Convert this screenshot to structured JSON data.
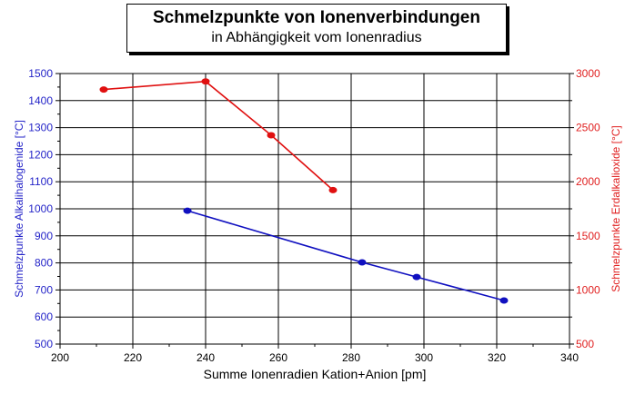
{
  "title": "Schmelzpunkte von Ionenverbindungen",
  "subtitle": "in Abhängigkeit vom Ionenradius",
  "chart_data": {
    "type": "line",
    "title": "Schmelzpunkte von Ionenverbindungen",
    "subtitle": "in Abhängigkeit vom Ionenradius",
    "xlabel": "Summe Ionenradien Kation+Anion [pm]",
    "xlim": [
      200,
      340
    ],
    "xticks": [
      200,
      220,
      240,
      260,
      280,
      300,
      320,
      340
    ],
    "grid": true,
    "left_axis": {
      "label": "Schmelzpunkte Alkalihalogenide [°C]",
      "ylim": [
        500,
        1500
      ],
      "ticks": [
        500,
        600,
        700,
        800,
        900,
        1000,
        1100,
        1200,
        1300,
        1400,
        1500
      ],
      "color": "#2424c8"
    },
    "right_axis": {
      "label": "Schmelzpunkte Erdalkalioxide [°C]",
      "ylim": [
        500,
        3000
      ],
      "ticks": [
        500,
        1000,
        1500,
        2000,
        2500,
        3000
      ],
      "color": "#e02020"
    },
    "series": [
      {
        "axis": "left",
        "color": "#1010c0",
        "x": [
          235,
          283,
          298,
          322
        ],
        "y": [
          993,
          802,
          748,
          661
        ]
      },
      {
        "axis": "right",
        "color": "#e01010",
        "x": [
          212,
          240,
          258,
          275
        ],
        "y": [
          2852,
          2927,
          2430,
          1923
        ]
      }
    ]
  }
}
